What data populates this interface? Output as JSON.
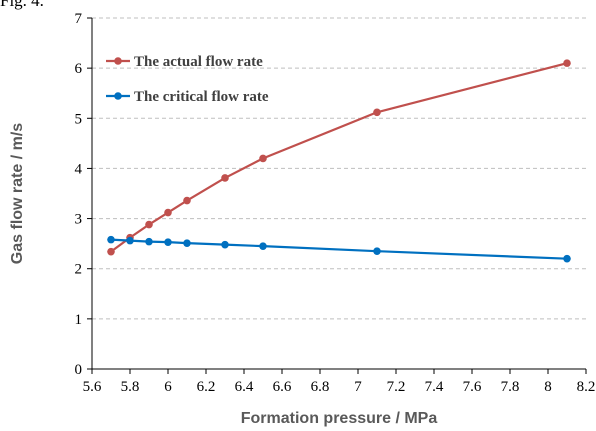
{
  "top_fragment": "Fig. 4.",
  "chart_data": {
    "type": "line",
    "xlabel": "Formation pressure / MPa",
    "ylabel": "Gas flow rate / m/s",
    "xlim": [
      5.6,
      8.2
    ],
    "ylim": [
      0,
      7
    ],
    "xticks": [
      5.6,
      5.8,
      6,
      6.2,
      6.4,
      6.6,
      6.8,
      7,
      7.2,
      7.4,
      7.6,
      7.8,
      8,
      8.2
    ],
    "xtick_labels": [
      "5.6",
      "5.8",
      "6",
      "6.2",
      "6.4",
      "6.6",
      "6.8",
      "7",
      "7.2",
      "7.4",
      "7.6",
      "7.8",
      "8",
      "8.2"
    ],
    "yticks": [
      0,
      1,
      2,
      3,
      4,
      5,
      6,
      7
    ],
    "ytick_labels": [
      "0",
      "1",
      "2",
      "3",
      "4",
      "5",
      "6",
      "7"
    ],
    "grid": "horizontal dashed",
    "legend_position": "top-left",
    "series": [
      {
        "name": "The actual flow rate",
        "color": "#C0504D",
        "x": [
          5.7,
          5.8,
          5.9,
          6.0,
          6.1,
          6.3,
          6.5,
          7.1,
          8.1
        ],
        "y": [
          2.34,
          2.62,
          2.88,
          3.12,
          3.36,
          3.81,
          4.2,
          5.12,
          6.1
        ]
      },
      {
        "name": "The critical flow rate",
        "color": "#0070C0",
        "x": [
          5.7,
          5.8,
          5.9,
          6.0,
          6.1,
          6.3,
          6.5,
          7.1,
          8.1
        ],
        "y": [
          2.58,
          2.56,
          2.54,
          2.53,
          2.51,
          2.48,
          2.45,
          2.35,
          2.2
        ]
      }
    ]
  }
}
